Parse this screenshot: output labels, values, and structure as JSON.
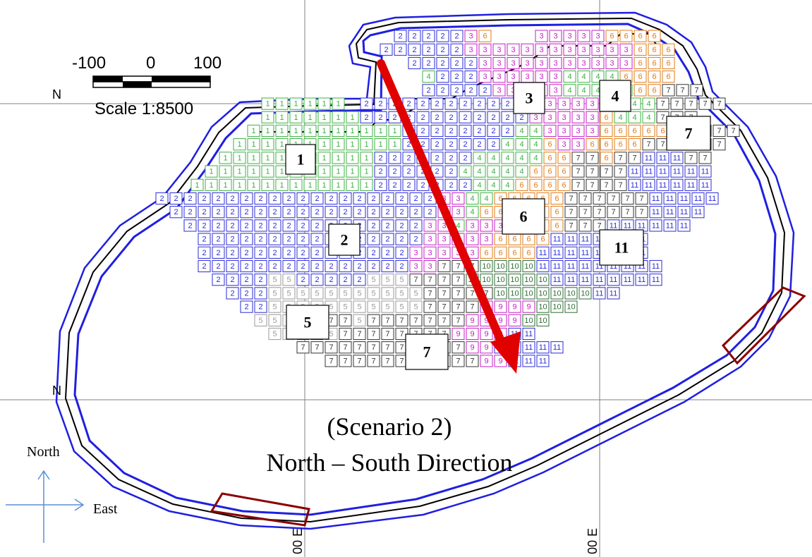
{
  "colors": {
    "zone_1": "#3cb043",
    "zone_2": "#2b2bd6",
    "zone_3": "#c41ec4",
    "zone_4": "#3cb043",
    "zone_5": "#9a9a9a",
    "zone_6": "#e07b16",
    "zone_7": "#333333",
    "zone_9": "#c41ec4",
    "zone_10": "#2e6b35",
    "zone_11": "#2b2bd6",
    "boundary_outer": "#1f1fe0",
    "boundary_inner": "#000000",
    "direction_arrow": "#e00000",
    "gate": "#8b0000",
    "compass_arrow": "#5b8fd6"
  },
  "scale_bar": {
    "tick_left": "-100",
    "tick_mid": "0",
    "tick_right": "100",
    "label": "Scale 1:8500"
  },
  "grid_labels": {
    "north_top": "N",
    "north_bottom": "N",
    "east_left": "00 E",
    "east_right": "00 E"
  },
  "zone_labels": [
    {
      "id": "zone-1",
      "text": "1"
    },
    {
      "id": "zone-2",
      "text": "2"
    },
    {
      "id": "zone-3",
      "text": "3"
    },
    {
      "id": "zone-4",
      "text": "4"
    },
    {
      "id": "zone-5",
      "text": "5"
    },
    {
      "id": "zone-6",
      "text": "6"
    },
    {
      "id": "zone-7a",
      "text": "7"
    },
    {
      "id": "zone-7b",
      "text": "7"
    },
    {
      "id": "zone-11",
      "text": "11"
    }
  ],
  "scenario": {
    "line1": "(Scenario 2)",
    "line2": "North – South Direction"
  },
  "compass": {
    "north_label": "North",
    "east_label": "East"
  },
  "block_rows": [
    {
      "x0": 558,
      "cells": "2,2,2,2,2,3,6,_,_,_,3,3,3,3,3,6,6,6,6"
    },
    {
      "x0": 538,
      "cells": "2,2,2,2,2,2,3,3,3,3,3,3,3,3,3,3,3,3,6,6,6"
    },
    {
      "x0": 578,
      "cells": "2,2,2,2,2,3,3,3,3,3,3,3,3,3,3,3,6,6,6"
    },
    {
      "x0": 598,
      "cells": "4,2,2,2,3,3,3,3,3,3,4,4,4,4,6,6,6,6"
    },
    {
      "x0": 598,
      "cells": "2,2,2,2,2,3,3,3,3,3,4,4,4,4,4,6,6,7,7,7"
    },
    {
      "x0": 370,
      "cells": "1,1,1,1,1,1,_,2,2,2,2,2,2,2,2,2,2,2,3,3,3,3,3,3,4,4,4,4,7,7,7,7,7"
    },
    {
      "x0": 370,
      "cells": "1,1,1,1,1,1,1,2,2,2,2,2,2,2,2,2,2,2,2,3,3,3,3,3,6,4,4,4,7,7,7"
    },
    {
      "x0": 350,
      "cells": "1,1,1,1,1,1,1,1,1,1,1,2,2,2,2,2,2,2,2,4,4,3,3,3,3,6,6,6,6,6,7,7,7,7,7"
    },
    {
      "x0": 330,
      "cells": "1,1,1,1,1,1,1,1,1,1,1,1,2,2,2,2,2,2,2,4,4,4,6,3,3,6,6,6,6,7,7,7,7,7,7"
    },
    {
      "x0": 310,
      "cells": "1,1,1,1,1,1,1,1,1,1,1,2,2,2,2,2,2,2,4,4,4,4,4,6,6,7,7,6,7,7,11,11,11,7,7"
    },
    {
      "x0": 290,
      "cells": "1,1,1,1,1,1,1,1,1,1,1,1,2,2,2,2,2,2,4,4,4,4,4,6,6,6,7,7,7,7,11,11,11,11,11,11"
    },
    {
      "x0": 270,
      "cells": "1,1,1,1,1,1,1,1,1,1,1,1,1,2,2,2,2,2,2,2,4,4,4,6,6,6,6,7,7,7,7,11,11,11,11,11,11"
    },
    {
      "x0": 220,
      "cells": "2,2,2,2,2,2,2,2,2,2,2,2,2,2,2,2,2,2,2,2,3,3,4,4,6,6,6,6,6,7,7,7,7,7,7,11,11,11,11,11"
    },
    {
      "x0": 240,
      "cells": "2,2,2,2,2,2,2,2,2,2,2,2,2,2,2,2,2,2,2,3,3,4,6,6,6,6,6,6,7,7,7,7,7,7,11,11,11,11"
    },
    {
      "x0": 260,
      "cells": "2,2,2,2,2,2,2,2,2,2,2,2,2,2,2,2,2,3,3,4,3,3,3,6,6,6,6,7,7,7,11,11,11,11,11,11"
    },
    {
      "x0": 280,
      "cells": "2,2,2,2,2,2,2,2,2,2,2,2,2,2,2,2,3,3,3,3,3,6,6,6,6,11,11,11,11,11,11,11"
    },
    {
      "x0": 280,
      "cells": "2,2,2,2,2,2,2,2,2,2,2,2,2,2,2,3,3,3,3,3,6,6,6,6,11,11,11,11,11,11,11,11"
    },
    {
      "x0": 280,
      "cells": "2,2,2,2,2,2,2,2,2,2,2,2,2,2,2,3,3,7,7,7,10,10,10,10,11,11,11,11,11,11,11,11,11"
    },
    {
      "x0": 300,
      "cells": "2,2,2,2,5,5,2,2,2,2,2,5,5,5,7,7,7,7,10,10,10,10,10,10,11,11,11,11,11,11,11,11"
    },
    {
      "x0": 320,
      "cells": "2,2,2,5,5,5,5,5,5,5,5,5,5,5,7,7,7,7,7,10,10,10,10,10,10,10,11,11"
    },
    {
      "x0": 340,
      "cells": "2,2,5,5,5,5,5,5,5,5,5,5,5,7,7,7,7,9,9,9,9,10,10,10"
    },
    {
      "x0": 360,
      "cells": "5,5,5,5,5,7,7,5,7,7,7,7,7,7,7,9,9,9,9,10,10"
    },
    {
      "x0": 380,
      "cells": "5,5,7,7,5,7,7,7,7,7,7,7,7,9,9,9,9,11,11"
    },
    {
      "x0": 420,
      "cells": "7,7,7,7,7,7,7,7,7,7,7,7,9,9,11,11,11,11,11"
    },
    {
      "x0": 460,
      "cells": "7,7,7,7,7,7,7,7,7,7,7,9,9,11,11,11"
    }
  ]
}
